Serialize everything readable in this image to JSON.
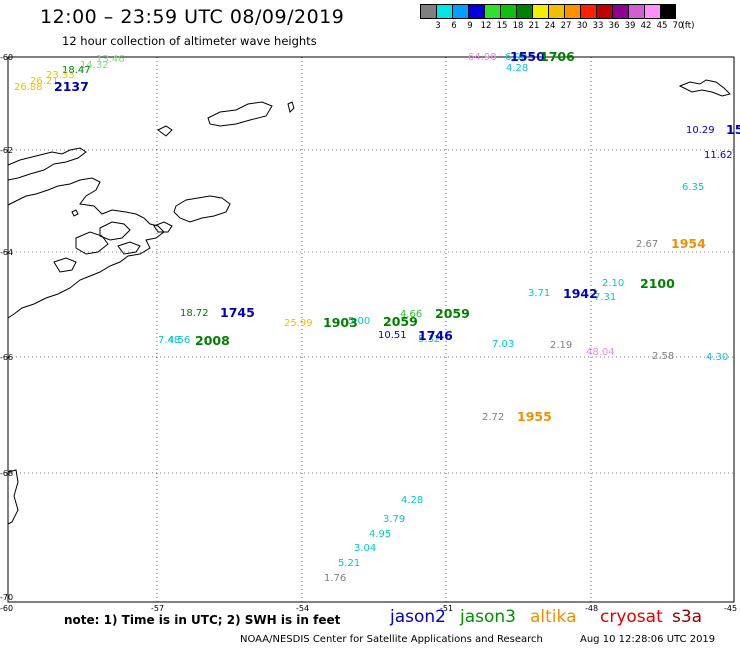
{
  "header": {
    "title": "12:00 – 23:59 UTC 08/09/2019",
    "subtitle": "12 hour collection of altimeter wave heights"
  },
  "color_scale": {
    "unit": "(ft)",
    "ticks": [
      "3",
      "6",
      "9",
      "12",
      "15",
      "18",
      "21",
      "24",
      "27",
      "30",
      "33",
      "36",
      "39",
      "42",
      "45",
      "70"
    ],
    "colors": [
      "#808080",
      "#00e5e5",
      "#00a0ff",
      "#0000e0",
      "#30e030",
      "#10c010",
      "#008000",
      "#f0f000",
      "#f0c000",
      "#ff9000",
      "#ff2000",
      "#c00000",
      "#900090",
      "#d060d0",
      "#ff90ff",
      "#000000"
    ]
  },
  "axes": {
    "lat_labels": [
      "-60",
      "-62",
      "-64",
      "-66",
      "-68",
      "-70"
    ],
    "lon_labels": [
      "-57",
      "-54",
      "-51",
      "-48",
      "-45"
    ],
    "corner_label": "-60"
  },
  "observations": [
    {
      "text": "13.46",
      "color": "#7de07d"
    },
    {
      "text": "14.32",
      "color": "#7de07d"
    },
    {
      "text": "18.47",
      "color": "#008000"
    },
    {
      "text": "23.33",
      "color": "#f0c000"
    },
    {
      "text": "26.21",
      "color": "#f0c000"
    },
    {
      "text": "26.88",
      "color": "#f0c000"
    },
    {
      "text": "64.98",
      "color": "#e88ce8"
    },
    {
      "text": "6.90",
      "color": "#00c8d0"
    },
    {
      "text": "4.28",
      "color": "#00c8d0"
    },
    {
      "text": "10.29",
      "color": "#0000d0"
    },
    {
      "text": "11.62",
      "color": "#0000d0"
    },
    {
      "text": "6.35",
      "color": "#00c8d0"
    },
    {
      "text": "2.67",
      "color": "#808080"
    },
    {
      "text": "3.71",
      "color": "#00c8d0"
    },
    {
      "text": "2.10",
      "color": "#00c8d0"
    },
    {
      "text": "7.31",
      "color": "#00c8d0"
    },
    {
      "text": "18.72",
      "color": "#008000"
    },
    {
      "text": "25.99",
      "color": "#f0c000"
    },
    {
      "text": "5.00",
      "color": "#00c8d0"
    },
    {
      "text": "4.66",
      "color": "#30c030"
    },
    {
      "text": "10.51",
      "color": "#0000d0"
    },
    {
      "text": "5.32",
      "color": "#00c8d0"
    },
    {
      "text": "7.03",
      "color": "#00c8d0"
    },
    {
      "text": "2.19",
      "color": "#808080"
    },
    {
      "text": "48.04",
      "color": "#e88ce8"
    },
    {
      "text": "2.58",
      "color": "#808080"
    },
    {
      "text": "4.30",
      "color": "#00c8d0"
    },
    {
      "text": "7.48",
      "color": "#00c8d0"
    },
    {
      "text": "4.56",
      "color": "#00c8d0"
    },
    {
      "text": "2.72",
      "color": "#808080"
    },
    {
      "text": "4.28",
      "color": "#00c8d0"
    },
    {
      "text": "3.79",
      "color": "#00c8d0"
    },
    {
      "text": "4.95",
      "color": "#00c8d0"
    },
    {
      "text": "3.04",
      "color": "#00c8d0"
    },
    {
      "text": "5.21",
      "color": "#00c8d0"
    },
    {
      "text": "1.76",
      "color": "#808080"
    }
  ],
  "pass_times": [
    {
      "text": "2137",
      "color": "#0000c0"
    },
    {
      "text": "1550",
      "color": "#0000c0"
    },
    {
      "text": "1706",
      "color": "#008000"
    },
    {
      "text": "15",
      "color": "#0000c0"
    },
    {
      "text": "1954",
      "color": "#f09000"
    },
    {
      "text": "1942",
      "color": "#0000c0"
    },
    {
      "text": "2100",
      "color": "#008000"
    },
    {
      "text": "1745",
      "color": "#0000c0"
    },
    {
      "text": "1903",
      "color": "#008000"
    },
    {
      "text": "2059",
      "color": "#008000"
    },
    {
      "text": "2059",
      "color": "#008000"
    },
    {
      "text": "1746",
      "color": "#0000c0"
    },
    {
      "text": "2008",
      "color": "#008000"
    },
    {
      "text": "1955",
      "color": "#f09000"
    }
  ],
  "note": "note: 1) Time is in UTC; 2) SWH is in feet",
  "satellites": [
    {
      "name": "jason2",
      "color": "#0000c0"
    },
    {
      "name": "jason3",
      "color": "#009000"
    },
    {
      "name": "altika",
      "color": "#f09000"
    },
    {
      "name": "cryosat",
      "color": "#e00000"
    },
    {
      "name": "s3a",
      "color": "#900000"
    }
  ],
  "footer": {
    "credit": "NOAA/NESDIS Center for Satellite Applications and Research",
    "timestamp": "Aug 10 12:28:06 UTC 2019"
  }
}
